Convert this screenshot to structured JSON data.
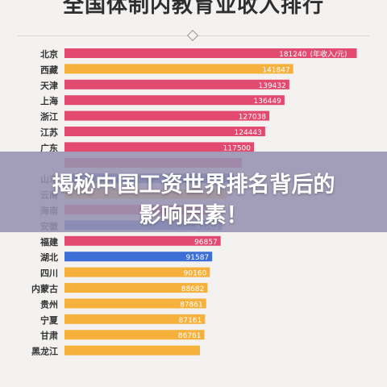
{
  "page": {
    "title": "全国体制内教育业收入排行"
  },
  "overlay": {
    "line1": "揭秘中国工资世界排名背后的",
    "line2": "影响因素！"
  },
  "chart_data": {
    "type": "bar",
    "orientation": "horizontal",
    "title": "全国体制内教育业收入排行",
    "unit_label": "(年收入/元)",
    "categories": [
      "北京",
      "西藏",
      "天津",
      "上海",
      "浙江",
      "江苏",
      "广东",
      "",
      "山东",
      "云南",
      "海南",
      "安徽",
      "福建",
      "湖北",
      "四川",
      "内蒙古",
      "贵州",
      "宁夏",
      "甘肃",
      "黑龙江"
    ],
    "values": [
      181240,
      141847,
      139432,
      136449,
      127038,
      124443,
      117500,
      110000,
      105000,
      100500,
      98265,
      97702,
      96857,
      91587,
      90160,
      88682,
      87861,
      87161,
      86761,
      84000
    ],
    "value_labels": [
      "181240",
      "141847",
      "139432",
      "136449",
      "127038",
      "124443",
      "117500",
      "",
      "",
      "",
      "98265",
      "97702",
      "96857",
      "91587",
      "90160",
      "88682",
      "87861",
      "87161",
      "86761",
      ""
    ],
    "colors": [
      "#e24a70",
      "#f5b13b",
      "#e24a70",
      "#e24a70",
      "#e24a70",
      "#e24a70",
      "#e24a70",
      "#e24a70",
      "#3d6fd6",
      "#f5b13b",
      "#e24a70",
      "#3d6fd6",
      "#e24a70",
      "#3d6fd6",
      "#f5b13b",
      "#f5b13b",
      "#f5b13b",
      "#f5b13b",
      "#f5b13b",
      "#f5b13b"
    ],
    "xlim": [
      0,
      185000
    ]
  }
}
